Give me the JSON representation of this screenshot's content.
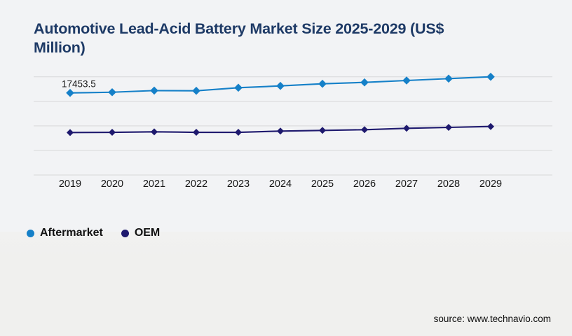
{
  "title": "Automotive Lead-Acid Battery Market Size 2025-2029 (US$\nMillion)",
  "source": "source: www.technavio.com",
  "colors": {
    "title": "#1e3a66",
    "aftermarket": "#1580c8",
    "oem": "#1e196e",
    "gridline": "#d8d8d9",
    "axis_text": "#161616",
    "background": "#f2f3f5"
  },
  "legend": {
    "items": [
      {
        "label": "Aftermarket",
        "color": "#1580c8"
      },
      {
        "label": "OEM",
        "color": "#1e196e"
      }
    ]
  },
  "chart_data": {
    "type": "line",
    "title": "Automotive Lead-Acid Battery Market Size 2025-2029 (US$ Million)",
    "x": [
      "2019",
      "2020",
      "2021",
      "2022",
      "2023",
      "2024",
      "2025",
      "2026",
      "2027",
      "2028",
      "2029"
    ],
    "series": [
      {
        "name": "Aftermarket",
        "color": "#1580c8",
        "marker": "diamond",
        "values": [
          17453.5,
          17600,
          17950,
          17900,
          18550,
          18940,
          19390,
          19690,
          20090,
          20490,
          20880
        ]
      },
      {
        "name": "OEM",
        "color": "#1e196e",
        "marker": "diamond",
        "values": [
          9030,
          9075,
          9180,
          9075,
          9075,
          9330,
          9480,
          9630,
          9925,
          10120,
          10310
        ]
      }
    ],
    "data_labels": [
      {
        "series": "Aftermarket",
        "x": "2019",
        "text": "17453.5"
      }
    ],
    "xlabel": "",
    "ylabel": "",
    "ylim": [
      0,
      20880
    ],
    "y_axis_visible": false,
    "grid": "horizontal",
    "gridline_count": 5,
    "legend_position": "bottom-left"
  }
}
